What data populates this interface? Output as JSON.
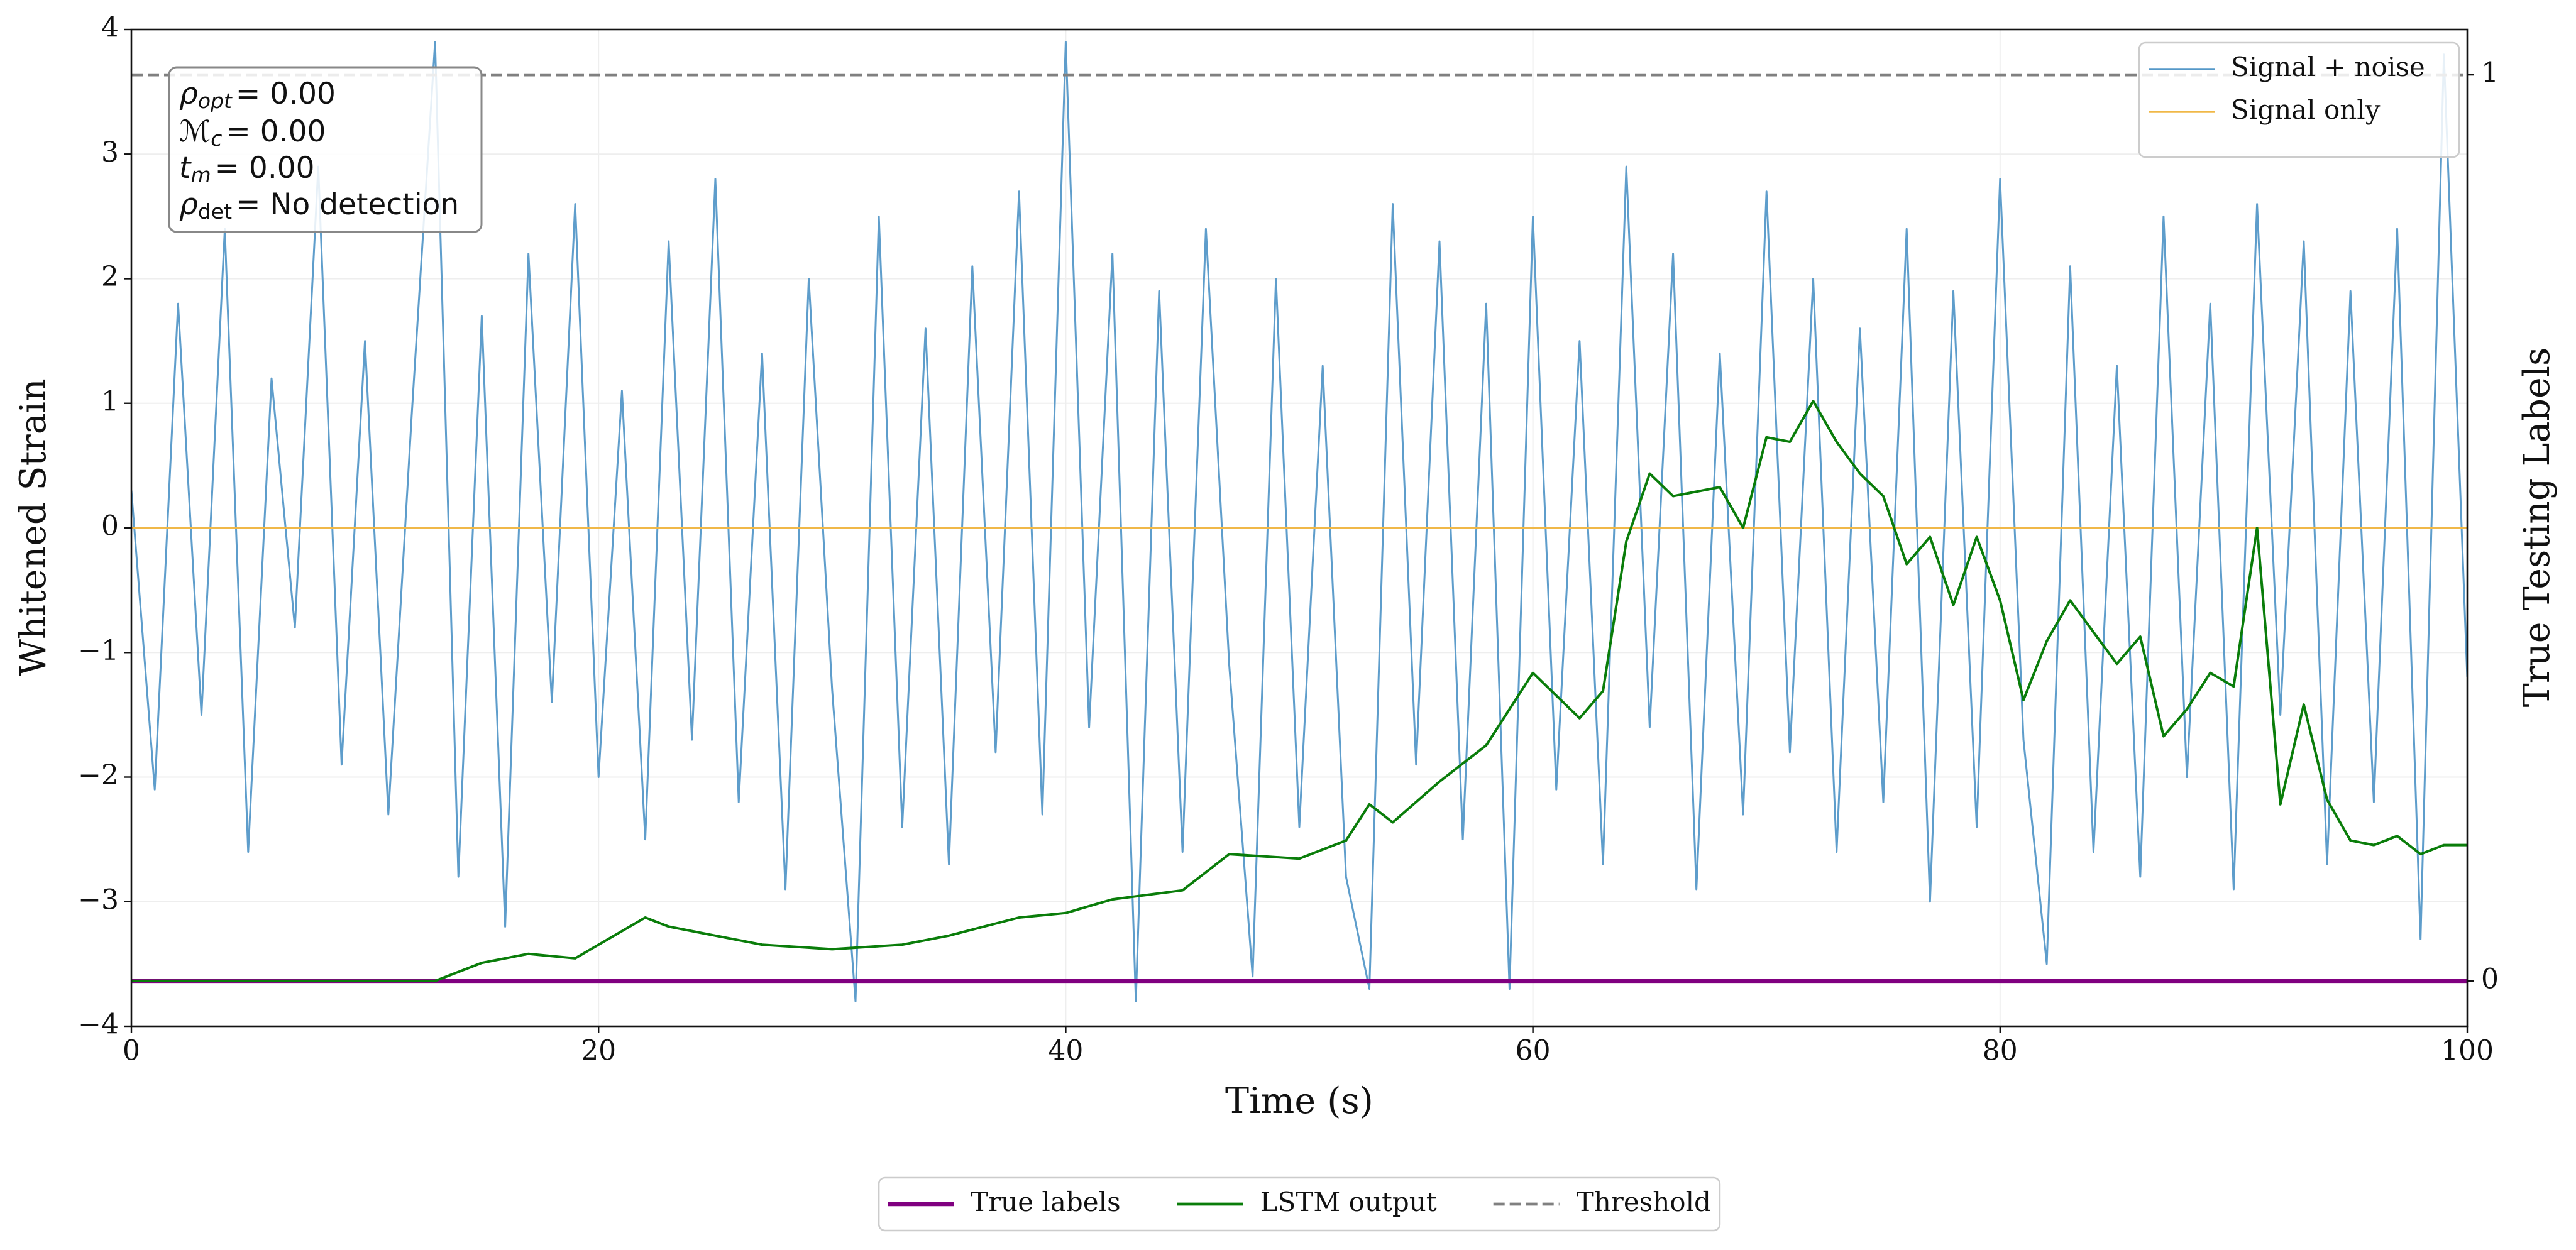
{
  "chart_data": {
    "type": "line",
    "xlabel": "Time (s)",
    "ylabel": "Whitened Strain",
    "y2label": "True Testing Labels",
    "xlim": [
      0,
      100
    ],
    "xticks": [
      0,
      20,
      40,
      60,
      80,
      100
    ],
    "ylim": [
      -4,
      4
    ],
    "yticks": [
      {
        "value": -4,
        "label": "−4"
      },
      {
        "value": -3,
        "label": "−3"
      },
      {
        "value": -2,
        "label": "−2"
      },
      {
        "value": -1,
        "label": "−1"
      },
      0,
      1,
      2,
      3,
      4
    ],
    "y2lim": [
      -0.05,
      1.05
    ],
    "y2ticks": [
      0,
      1
    ],
    "grid": true,
    "legend": "upper right",
    "legend2": "lower center",
    "annotation": [
      {
        "symbol": "ρ",
        "subscript": "opt",
        "text": "= 0.00"
      },
      {
        "symbol": "ℳ",
        "subscript": "c",
        "text": "= 0.00"
      },
      {
        "symbol": "t",
        "subscript": "m",
        "text": "= 0.00"
      },
      {
        "symbol": "ρ",
        "subscript": "det",
        "text": "= No detection"
      }
    ],
    "series": [
      {
        "name": "Signal + noise",
        "color": "#5598c8",
        "x": [
          0,
          1,
          2,
          3,
          4,
          5,
          6,
          7,
          8,
          9,
          10,
          11,
          12,
          13,
          14,
          15,
          16,
          17,
          18,
          19,
          20,
          21,
          22,
          23,
          24,
          25,
          26,
          27,
          28,
          29,
          30,
          31,
          32,
          33,
          34,
          35,
          36,
          37,
          38,
          39,
          40,
          41,
          42,
          43,
          44,
          45,
          46,
          47,
          48,
          49,
          50,
          51,
          52,
          53,
          54,
          55,
          56,
          57,
          58,
          59,
          60,
          61,
          62,
          63,
          64,
          65,
          66,
          67,
          68,
          69,
          70,
          71,
          72,
          73,
          74,
          75,
          76,
          77,
          78,
          79,
          80,
          81,
          82,
          83,
          84,
          85,
          86,
          87,
          88,
          89,
          90,
          91,
          92,
          93,
          94,
          95,
          96,
          97,
          98,
          99,
          100
        ],
        "values": [
          0.3,
          -2.1,
          1.8,
          -1.5,
          2.4,
          -2.6,
          1.2,
          -0.8,
          2.9,
          -1.9,
          1.5,
          -2.3,
          0.9,
          3.9,
          -2.8,
          1.7,
          -3.2,
          2.2,
          -1.4,
          2.6,
          -2.0,
          1.1,
          -2.5,
          2.3,
          -1.7,
          2.8,
          -2.2,
          1.4,
          -2.9,
          2.0,
          -1.3,
          -3.8,
          2.5,
          -2.4,
          1.6,
          -2.7,
          2.1,
          -1.8,
          2.7,
          -2.3,
          3.9,
          -1.6,
          2.2,
          -3.8,
          1.9,
          -2.6,
          2.4,
          -1.1,
          -3.6,
          2.0,
          -2.4,
          1.3,
          -2.8,
          -3.7,
          2.6,
          -1.9,
          2.3,
          -2.5,
          1.8,
          -3.7,
          2.5,
          -2.1,
          1.5,
          -2.7,
          2.9,
          -1.6,
          2.2,
          -2.9,
          1.4,
          -2.3,
          2.7,
          -1.8,
          2.0,
          -2.6,
          1.6,
          -2.2,
          2.4,
          -3.0,
          1.9,
          -2.4,
          2.8,
          -1.7,
          -3.5,
          2.1,
          -2.6,
          1.3,
          -2.8,
          2.5,
          -2.0,
          1.8,
          -2.9,
          2.6,
          -1.5,
          2.3,
          -2.7,
          1.9,
          -2.2,
          2.4,
          -3.3,
          3.8,
          -1.2
        ]
      },
      {
        "name": "Signal only",
        "color": "#f0b848",
        "x": [
          0,
          100
        ],
        "values": [
          0,
          0
        ]
      },
      {
        "name": "True labels",
        "color": "#800080",
        "axis": "y2",
        "x": [
          0,
          100
        ],
        "values": [
          0,
          0
        ]
      },
      {
        "name": "LSTM output",
        "color": "#0a7d0a",
        "axis": "y2",
        "x": [
          0,
          13,
          15,
          17,
          19,
          20,
          22,
          23,
          25,
          27,
          30,
          33,
          35,
          38,
          40,
          42,
          45,
          47,
          50,
          52,
          53,
          54,
          56,
          58,
          60,
          62,
          63,
          64,
          65,
          66,
          68,
          69,
          70,
          71,
          72,
          73,
          74,
          75,
          76,
          77,
          78,
          79,
          80,
          81,
          82,
          83,
          84,
          85,
          86,
          87,
          88,
          89,
          90,
          91,
          92,
          93,
          94,
          95,
          96,
          97,
          98,
          99,
          100
        ],
        "values": [
          0,
          0,
          0.02,
          0.03,
          0.025,
          0.04,
          0.07,
          0.06,
          0.05,
          0.04,
          0.035,
          0.04,
          0.05,
          0.07,
          0.075,
          0.09,
          0.1,
          0.14,
          0.135,
          0.155,
          0.195,
          0.175,
          0.22,
          0.26,
          0.34,
          0.29,
          0.32,
          0.485,
          0.56,
          0.535,
          0.545,
          0.5,
          0.6,
          0.595,
          0.64,
          0.595,
          0.56,
          0.535,
          0.46,
          0.49,
          0.415,
          0.49,
          0.42,
          0.31,
          0.375,
          0.42,
          0.385,
          0.35,
          0.38,
          0.27,
          0.3,
          0.34,
          0.325,
          0.5,
          0.195,
          0.305,
          0.2,
          0.155,
          0.15,
          0.16,
          0.14,
          0.15,
          0.15
        ]
      },
      {
        "name": "Threshold",
        "color": "#808080",
        "axis": "y2",
        "linestyle": "dashed",
        "x": [
          0,
          100
        ],
        "values": [
          1,
          1
        ]
      }
    ]
  }
}
